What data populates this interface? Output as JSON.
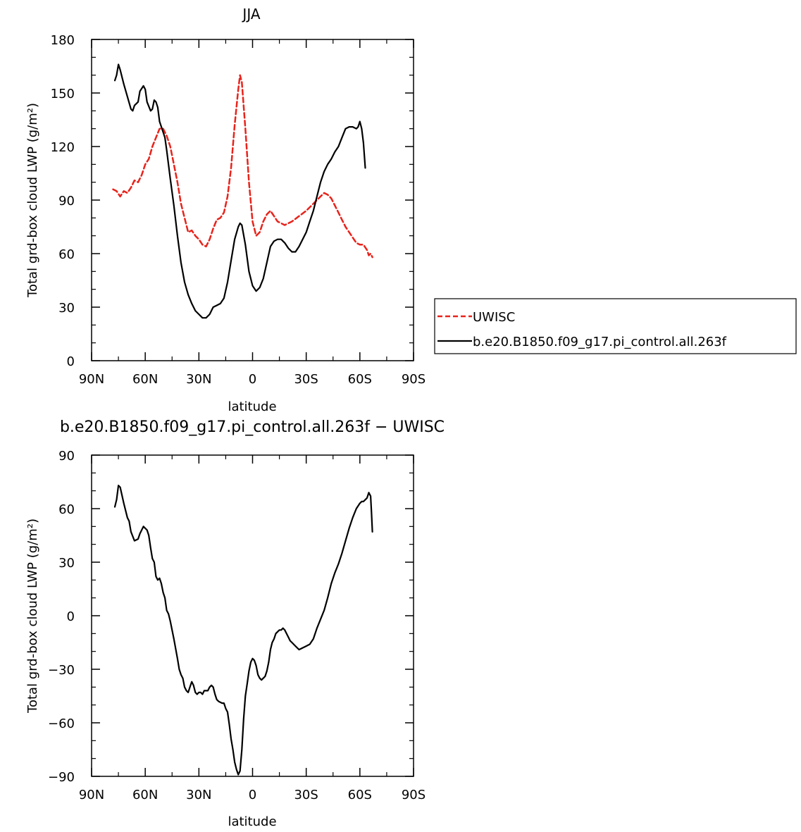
{
  "chart_data": [
    {
      "type": "line",
      "title": "JJA",
      "xlabel": "latitude",
      "ylabel": "Total grd-box cloud LWP (g/m²)",
      "xlim": [
        90,
        -90
      ],
      "ylim": [
        0,
        180
      ],
      "x_tick_values": [
        90,
        60,
        30,
        0,
        -30,
        -60,
        -90
      ],
      "x_tick_labels": [
        "90N",
        "60N",
        "30N",
        "0",
        "30S",
        "60S",
        "90S"
      ],
      "y_tick_values": [
        0,
        30,
        60,
        90,
        120,
        150,
        180
      ],
      "y_tick_labels": [
        "0",
        "30",
        "60",
        "90",
        "120",
        "150",
        "180"
      ],
      "legend": {
        "placement": "outside-right"
      },
      "series": [
        {
          "name": "UWISC",
          "color": "#e8231b",
          "dash": "dashed",
          "points": [
            [
              78,
              96
            ],
            [
              76,
              95
            ],
            [
              74,
              92
            ],
            [
              72,
              95
            ],
            [
              70,
              94
            ],
            [
              68,
              97
            ],
            [
              66,
              101
            ],
            [
              64,
              100
            ],
            [
              62,
              104
            ],
            [
              60,
              110
            ],
            [
              58,
              113
            ],
            [
              56,
              120
            ],
            [
              54,
              125
            ],
            [
              52,
              130
            ],
            [
              50,
              130
            ],
            [
              48,
              126
            ],
            [
              46,
              120
            ],
            [
              44,
              110
            ],
            [
              42,
              100
            ],
            [
              40,
              88
            ],
            [
              38,
              80
            ],
            [
              36,
              72
            ],
            [
              34,
              73
            ],
            [
              32,
              70
            ],
            [
              30,
              68
            ],
            [
              28,
              65
            ],
            [
              26,
              64
            ],
            [
              24,
              68
            ],
            [
              22,
              74
            ],
            [
              20,
              79
            ],
            [
              18,
              80
            ],
            [
              16,
              83
            ],
            [
              14,
              92
            ],
            [
              12,
              108
            ],
            [
              10,
              132
            ],
            [
              8,
              152
            ],
            [
              7,
              160
            ],
            [
              6,
              156
            ],
            [
              4,
              130
            ],
            [
              2,
              100
            ],
            [
              0,
              78
            ],
            [
              -2,
              70
            ],
            [
              -4,
              72
            ],
            [
              -6,
              78
            ],
            [
              -8,
              82
            ],
            [
              -10,
              84
            ],
            [
              -12,
              81
            ],
            [
              -14,
              78
            ],
            [
              -18,
              76
            ],
            [
              -22,
              78
            ],
            [
              -26,
              81
            ],
            [
              -30,
              84
            ],
            [
              -34,
              88
            ],
            [
              -38,
              92
            ],
            [
              -40,
              94
            ],
            [
              -42,
              93
            ],
            [
              -44,
              91
            ],
            [
              -46,
              87
            ],
            [
              -48,
              83
            ],
            [
              -50,
              79
            ],
            [
              -52,
              75
            ],
            [
              -54,
              72
            ],
            [
              -56,
              69
            ],
            [
              -58,
              66
            ],
            [
              -60,
              65
            ],
            [
              -62,
              65
            ],
            [
              -64,
              62
            ],
            [
              -65,
              59
            ],
            [
              -66,
              60
            ],
            [
              -67,
              58
            ]
          ]
        },
        {
          "name": "b.e20.B1850.f09_g17.pi_control.all.263f",
          "color": "#000000",
          "dash": "solid",
          "points": [
            [
              77,
              157
            ],
            [
              76,
              160
            ],
            [
              75,
              166
            ],
            [
              74,
              163
            ],
            [
              72,
              155
            ],
            [
              70,
              148
            ],
            [
              68,
              141
            ],
            [
              67,
              140
            ],
            [
              66,
              143
            ],
            [
              64,
              145
            ],
            [
              63,
              151
            ],
            [
              61,
              154
            ],
            [
              60,
              152
            ],
            [
              59,
              145
            ],
            [
              57,
              140
            ],
            [
              56,
              141
            ],
            [
              55,
              146
            ],
            [
              54,
              145
            ],
            [
              53,
              142
            ],
            [
              52,
              134
            ],
            [
              50,
              128
            ],
            [
              49,
              125
            ],
            [
              48,
              118
            ],
            [
              46,
              102
            ],
            [
              44,
              87
            ],
            [
              42,
              70
            ],
            [
              40,
              55
            ],
            [
              38,
              44
            ],
            [
              36,
              37
            ],
            [
              34,
              32
            ],
            [
              32,
              28
            ],
            [
              30,
              26
            ],
            [
              28,
              24
            ],
            [
              26,
              24
            ],
            [
              24,
              26
            ],
            [
              22,
              30
            ],
            [
              20,
              31
            ],
            [
              18,
              32
            ],
            [
              16,
              35
            ],
            [
              14,
              44
            ],
            [
              12,
              56
            ],
            [
              10,
              68
            ],
            [
              8,
              75
            ],
            [
              7,
              77
            ],
            [
              6,
              76
            ],
            [
              4,
              65
            ],
            [
              2,
              50
            ],
            [
              0,
              42
            ],
            [
              -2,
              39
            ],
            [
              -4,
              41
            ],
            [
              -6,
              46
            ],
            [
              -8,
              55
            ],
            [
              -10,
              64
            ],
            [
              -12,
              67
            ],
            [
              -14,
              68
            ],
            [
              -16,
              68
            ],
            [
              -18,
              66
            ],
            [
              -20,
              63
            ],
            [
              -22,
              61
            ],
            [
              -24,
              61
            ],
            [
              -26,
              64
            ],
            [
              -28,
              68
            ],
            [
              -30,
              72
            ],
            [
              -32,
              78
            ],
            [
              -34,
              84
            ],
            [
              -36,
              92
            ],
            [
              -38,
              100
            ],
            [
              -40,
              106
            ],
            [
              -42,
              110
            ],
            [
              -44,
              113
            ],
            [
              -46,
              117
            ],
            [
              -48,
              120
            ],
            [
              -50,
              125
            ],
            [
              -52,
              130
            ],
            [
              -54,
              131
            ],
            [
              -56,
              131
            ],
            [
              -58,
              130
            ],
            [
              -59,
              131
            ],
            [
              -60,
              134
            ],
            [
              -61,
              130
            ],
            [
              -62,
              122
            ],
            [
              -63,
              108
            ]
          ]
        }
      ]
    },
    {
      "type": "line",
      "title": "b.e20.B1850.f09_g17.pi_control.all.263f  − UWISC",
      "xlabel": "latitude",
      "ylabel": "Total grd-box cloud LWP (g/m²)",
      "xlim": [
        90,
        -90
      ],
      "ylim": [
        -90,
        90
      ],
      "x_tick_values": [
        90,
        60,
        30,
        0,
        -30,
        -60,
        -90
      ],
      "x_tick_labels": [
        "90N",
        "60N",
        "30N",
        "0",
        "30S",
        "60S",
        "90S"
      ],
      "y_tick_values": [
        -90,
        -60,
        -30,
        0,
        30,
        60,
        90
      ],
      "y_tick_labels": [
        "−90",
        "−60",
        "−30",
        "0",
        "30",
        "60",
        "90"
      ],
      "series": [
        {
          "color": "#000000",
          "dash": "solid",
          "points": [
            [
              77,
              61
            ],
            [
              76,
              65
            ],
            [
              75,
              73
            ],
            [
              74,
              72
            ],
            [
              72,
              63
            ],
            [
              70,
              55
            ],
            [
              69,
              53
            ],
            [
              68,
              47
            ],
            [
              66,
              42
            ],
            [
              64,
              43
            ],
            [
              63,
              46
            ],
            [
              61,
              50
            ],
            [
              59,
              48
            ],
            [
              58,
              45
            ],
            [
              57,
              38
            ],
            [
              56,
              32
            ],
            [
              55,
              30
            ],
            [
              54,
              22
            ],
            [
              53,
              20
            ],
            [
              52,
              21
            ],
            [
              51,
              18
            ],
            [
              50,
              13
            ],
            [
              49,
              10
            ],
            [
              48,
              3
            ],
            [
              47,
              1
            ],
            [
              46,
              -3
            ],
            [
              44,
              -13
            ],
            [
              42,
              -24
            ],
            [
              41,
              -30
            ],
            [
              40,
              -33
            ],
            [
              39,
              -35
            ],
            [
              38,
              -40
            ],
            [
              37,
              -42
            ],
            [
              36,
              -43
            ],
            [
              35,
              -40
            ],
            [
              34,
              -37
            ],
            [
              33,
              -39
            ],
            [
              32,
              -43
            ],
            [
              31,
              -44
            ],
            [
              30,
              -43
            ],
            [
              29,
              -43
            ],
            [
              28,
              -44
            ],
            [
              27,
              -42
            ],
            [
              25,
              -42
            ],
            [
              24,
              -40
            ],
            [
              23,
              -39
            ],
            [
              22,
              -40
            ],
            [
              21,
              -44
            ],
            [
              20,
              -47
            ],
            [
              19,
              -48
            ],
            [
              17,
              -49
            ],
            [
              16,
              -49
            ],
            [
              15,
              -52
            ],
            [
              14,
              -54
            ],
            [
              13,
              -61
            ],
            [
              12,
              -69
            ],
            [
              11,
              -75
            ],
            [
              10,
              -82
            ],
            [
              9,
              -86
            ],
            [
              8,
              -89
            ],
            [
              7,
              -87
            ],
            [
              6,
              -75
            ],
            [
              5,
              -58
            ],
            [
              4,
              -45
            ],
            [
              3,
              -38
            ],
            [
              2,
              -31
            ],
            [
              1,
              -26
            ],
            [
              0,
              -24
            ],
            [
              -1,
              -25
            ],
            [
              -2,
              -28
            ],
            [
              -3,
              -33
            ],
            [
              -4,
              -35
            ],
            [
              -5,
              -36
            ],
            [
              -6,
              -35
            ],
            [
              -7,
              -34
            ],
            [
              -8,
              -31
            ],
            [
              -9,
              -26
            ],
            [
              -10,
              -19
            ],
            [
              -11,
              -15
            ],
            [
              -12,
              -13
            ],
            [
              -13,
              -10
            ],
            [
              -14,
              -9
            ],
            [
              -15,
              -8
            ],
            [
              -16,
              -8
            ],
            [
              -17,
              -7
            ],
            [
              -18,
              -8
            ],
            [
              -19,
              -10
            ],
            [
              -20,
              -12
            ],
            [
              -21,
              -14
            ],
            [
              -22,
              -15
            ],
            [
              -24,
              -17
            ],
            [
              -26,
              -19
            ],
            [
              -28,
              -18
            ],
            [
              -30,
              -17
            ],
            [
              -32,
              -16
            ],
            [
              -34,
              -13
            ],
            [
              -36,
              -7
            ],
            [
              -38,
              -2
            ],
            [
              -40,
              3
            ],
            [
              -42,
              10
            ],
            [
              -44,
              18
            ],
            [
              -46,
              24
            ],
            [
              -48,
              29
            ],
            [
              -50,
              35
            ],
            [
              -52,
              42
            ],
            [
              -54,
              49
            ],
            [
              -56,
              55
            ],
            [
              -58,
              60
            ],
            [
              -60,
              63
            ],
            [
              -61,
              64
            ],
            [
              -62,
              64
            ],
            [
              -63,
              65
            ],
            [
              -64,
              66
            ],
            [
              -65,
              69
            ],
            [
              -66,
              67
            ],
            [
              -66.5,
              58
            ],
            [
              -67,
              47
            ]
          ]
        }
      ]
    }
  ]
}
